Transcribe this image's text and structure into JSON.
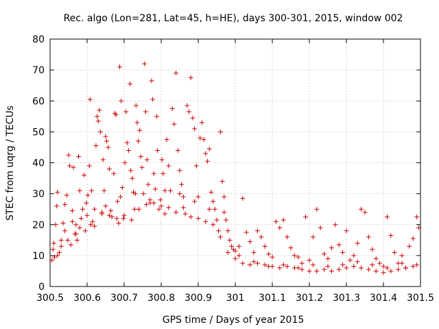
{
  "chart_data": {
    "type": "scatter",
    "title": "Rec. algo (Lon=281, Lat=45, h=HE), days 300-301, 2015, window 002",
    "xlabel": "GPS time / Days of year 2015",
    "ylabel": "STEC from uqrg / TECUs",
    "xlim": [
      300.5,
      301.5
    ],
    "ylim": [
      0,
      80
    ],
    "xticks": [
      "300.5",
      "300.6",
      "300.7",
      "300.8",
      "300.9",
      "301",
      "301.1",
      "301.2",
      "301.3",
      "301.4",
      "301.5"
    ],
    "xtick_values": [
      300.5,
      300.6,
      300.7,
      300.8,
      300.9,
      301.0,
      301.1,
      301.2,
      301.3,
      301.4,
      301.5
    ],
    "yticks": [
      "0",
      "10",
      "20",
      "30",
      "40",
      "50",
      "60",
      "70",
      "80"
    ],
    "ytick_values": [
      0,
      10,
      20,
      30,
      40,
      50,
      60,
      70,
      80
    ],
    "grid": true,
    "marker": "+",
    "color": "#cc0000",
    "series": [
      {
        "points": [
          [
            300.505,
            8.5
          ],
          [
            300.508,
            12
          ],
          [
            300.51,
            14
          ],
          [
            300.512,
            9.5
          ],
          [
            300.515,
            20
          ],
          [
            300.518,
            26
          ],
          [
            300.52,
            30.5
          ],
          [
            300.525,
            11
          ],
          [
            300.53,
            13
          ],
          [
            300.535,
            20.5
          ],
          [
            300.54,
            26.5
          ],
          [
            300.545,
            29.5
          ],
          [
            300.548,
            15
          ],
          [
            300.55,
            42.5
          ],
          [
            300.553,
            39
          ],
          [
            300.556,
            13.5
          ],
          [
            300.56,
            24.5
          ],
          [
            300.563,
            38.5
          ],
          [
            300.567,
            17
          ],
          [
            300.57,
            20
          ],
          [
            300.573,
            15
          ],
          [
            300.577,
            42
          ],
          [
            300.58,
            31
          ],
          [
            300.584,
            22
          ],
          [
            300.588,
            25
          ],
          [
            300.592,
            36
          ],
          [
            300.595,
            18
          ],
          [
            300.598,
            27
          ],
          [
            300.602,
            29.5
          ],
          [
            300.606,
            39
          ],
          [
            300.608,
            60.5
          ],
          [
            300.612,
            31
          ],
          [
            300.615,
            21
          ],
          [
            300.62,
            25
          ],
          [
            300.624,
            45.5
          ],
          [
            300.627,
            55
          ],
          [
            300.63,
            53.5
          ],
          [
            300.633,
            57
          ],
          [
            300.636,
            50
          ],
          [
            300.64,
            23.5
          ],
          [
            300.643,
            41
          ],
          [
            300.646,
            31
          ],
          [
            300.65,
            48.5
          ],
          [
            300.653,
            47
          ],
          [
            300.657,
            45
          ],
          [
            300.66,
            38
          ],
          [
            300.664,
            24.5
          ],
          [
            300.667,
            22.5
          ],
          [
            300.672,
            36.5
          ],
          [
            300.675,
            56
          ],
          [
            300.678,
            55.5
          ],
          [
            300.682,
            27.5
          ],
          [
            300.685,
            20.5
          ],
          [
            300.688,
            71
          ],
          [
            300.692,
            60
          ],
          [
            300.695,
            32
          ],
          [
            300.698,
            22
          ],
          [
            300.702,
            40
          ],
          [
            300.705,
            56.5
          ],
          [
            300.708,
            46.5
          ],
          [
            300.712,
            44
          ],
          [
            300.716,
            65.5
          ],
          [
            300.718,
            37.5
          ],
          [
            300.722,
            35
          ],
          [
            300.725,
            30.5
          ],
          [
            300.728,
            25
          ],
          [
            300.732,
            58.5
          ],
          [
            300.735,
            53
          ],
          [
            300.738,
            47
          ],
          [
            300.742,
            50.5
          ],
          [
            300.745,
            42
          ],
          [
            300.748,
            38.5
          ],
          [
            300.752,
            30
          ],
          [
            300.755,
            72
          ],
          [
            300.758,
            56.5
          ],
          [
            300.762,
            41
          ],
          [
            300.765,
            33
          ],
          [
            300.77,
            27
          ],
          [
            300.774,
            66.5
          ],
          [
            300.777,
            60.5
          ],
          [
            300.78,
            36.5
          ],
          [
            300.784,
            31.5
          ],
          [
            300.788,
            55
          ],
          [
            300.79,
            44
          ],
          [
            300.794,
            25
          ],
          [
            300.798,
            28
          ],
          [
            300.802,
            41
          ],
          [
            300.805,
            36.5
          ],
          [
            300.81,
            23.5
          ],
          [
            300.815,
            47.5
          ],
          [
            300.82,
            39
          ],
          [
            300.825,
            31
          ],
          [
            300.83,
            57.5
          ],
          [
            300.835,
            52.5
          ],
          [
            300.84,
            69
          ],
          [
            300.845,
            44
          ],
          [
            300.85,
            37.5
          ],
          [
            300.855,
            33
          ],
          [
            300.86,
            29
          ],
          [
            300.865,
            23.5
          ],
          [
            300.87,
            58.5
          ],
          [
            300.875,
            56.5
          ],
          [
            300.88,
            67.5
          ],
          [
            300.885,
            54.5
          ],
          [
            300.89,
            51
          ],
          [
            300.895,
            39
          ],
          [
            300.9,
            29
          ],
          [
            300.905,
            48
          ],
          [
            300.91,
            53
          ],
          [
            300.915,
            47.5
          ],
          [
            300.92,
            43
          ],
          [
            300.925,
            40.5
          ],
          [
            300.93,
            44.5
          ],
          [
            300.935,
            30.5
          ],
          [
            300.94,
            27.5
          ],
          [
            300.945,
            25
          ],
          [
            300.95,
            21.5
          ],
          [
            300.955,
            18
          ],
          [
            300.96,
            50
          ],
          [
            300.965,
            34
          ],
          [
            300.97,
            29
          ],
          [
            300.975,
            21.5
          ],
          [
            300.98,
            18
          ],
          [
            300.985,
            15
          ],
          [
            300.99,
            13
          ],
          [
            300.995,
            12
          ],
          [
            301.0,
            11.5
          ],
          [
            301.01,
            10
          ],
          [
            301.02,
            28.5
          ],
          [
            301.03,
            17.5
          ],
          [
            301.04,
            14.5
          ],
          [
            301.05,
            11
          ],
          [
            301.06,
            18
          ],
          [
            301.07,
            16
          ],
          [
            301.08,
            13
          ],
          [
            301.09,
            10.5
          ],
          [
            301.1,
            9.5
          ],
          [
            301.11,
            21
          ],
          [
            301.12,
            19
          ],
          [
            301.13,
            21.5
          ],
          [
            301.14,
            16
          ],
          [
            301.15,
            12.5
          ],
          [
            301.16,
            10
          ],
          [
            301.17,
            9.5
          ],
          [
            301.18,
            7.5
          ],
          [
            301.19,
            22.5
          ],
          [
            301.2,
            8.5
          ],
          [
            301.21,
            16
          ],
          [
            301.22,
            25
          ],
          [
            301.23,
            19
          ],
          [
            301.24,
            10.5
          ],
          [
            301.25,
            9
          ],
          [
            301.26,
            12.5
          ],
          [
            301.27,
            20
          ],
          [
            301.28,
            13.5
          ],
          [
            301.29,
            11
          ],
          [
            301.3,
            18
          ],
          [
            301.31,
            8.5
          ],
          [
            301.32,
            10
          ],
          [
            301.33,
            14
          ],
          [
            301.34,
            25
          ],
          [
            301.35,
            24
          ],
          [
            301.36,
            16
          ],
          [
            301.37,
            12
          ],
          [
            301.38,
            9
          ],
          [
            301.39,
            7.5
          ],
          [
            301.4,
            6.5
          ],
          [
            301.41,
            22.5
          ],
          [
            301.42,
            16.5
          ],
          [
            301.43,
            11
          ],
          [
            301.44,
            7.5
          ],
          [
            301.45,
            10
          ],
          [
            301.46,
            6
          ],
          [
            301.47,
            13
          ],
          [
            301.48,
            15.5
          ],
          [
            301.49,
            22.5
          ],
          [
            301.495,
            19
          ],
          [
            300.52,
            10
          ],
          [
            300.54,
            18
          ],
          [
            300.56,
            21
          ],
          [
            300.58,
            19
          ],
          [
            300.6,
            23
          ],
          [
            300.62,
            19.5
          ],
          [
            300.64,
            24
          ],
          [
            300.66,
            23
          ],
          [
            300.68,
            22
          ],
          [
            300.7,
            23
          ],
          [
            300.72,
            21.5
          ],
          [
            300.74,
            25
          ],
          [
            300.76,
            26.5
          ],
          [
            300.78,
            27
          ],
          [
            300.8,
            26
          ],
          [
            300.82,
            25.5
          ],
          [
            300.84,
            24
          ],
          [
            300.86,
            25.5
          ],
          [
            300.88,
            22.5
          ],
          [
            300.9,
            22
          ],
          [
            300.92,
            21
          ],
          [
            300.94,
            20
          ],
          [
            300.96,
            16
          ],
          [
            300.98,
            11
          ],
          [
            301.0,
            9
          ],
          [
            301.02,
            7.5
          ],
          [
            301.04,
            7
          ],
          [
            301.06,
            7.5
          ],
          [
            301.08,
            7
          ],
          [
            301.1,
            6.5
          ],
          [
            301.12,
            6
          ],
          [
            301.14,
            6.5
          ],
          [
            301.16,
            6
          ],
          [
            301.18,
            5.5
          ],
          [
            301.2,
            5
          ],
          [
            301.22,
            5
          ],
          [
            301.24,
            5.5
          ],
          [
            301.26,
            5
          ],
          [
            301.28,
            5.5
          ],
          [
            301.3,
            6
          ],
          [
            301.32,
            6.5
          ],
          [
            301.34,
            6
          ],
          [
            301.36,
            5.5
          ],
          [
            301.38,
            5
          ],
          [
            301.4,
            4.5
          ],
          [
            301.42,
            5
          ],
          [
            301.44,
            5.5
          ],
          [
            301.46,
            6
          ],
          [
            301.48,
            6.5
          ],
          [
            300.53,
            15
          ],
          [
            300.57,
            17
          ],
          [
            300.61,
            20
          ],
          [
            300.65,
            26
          ],
          [
            300.69,
            29
          ],
          [
            300.73,
            30
          ],
          [
            300.77,
            28
          ],
          [
            300.81,
            31
          ],
          [
            300.85,
            30
          ],
          [
            300.89,
            27.5
          ],
          [
            300.93,
            25
          ],
          [
            300.97,
            24
          ],
          [
            301.01,
            13
          ],
          [
            301.05,
            8
          ],
          [
            301.09,
            6.5
          ],
          [
            301.13,
            7
          ],
          [
            301.17,
            6
          ],
          [
            301.21,
            7
          ],
          [
            301.25,
            6.5
          ],
          [
            301.29,
            7
          ],
          [
            301.33,
            8
          ],
          [
            301.37,
            7
          ],
          [
            301.41,
            6
          ],
          [
            301.45,
            7.5
          ],
          [
            301.49,
            7
          ]
        ]
      }
    ]
  }
}
